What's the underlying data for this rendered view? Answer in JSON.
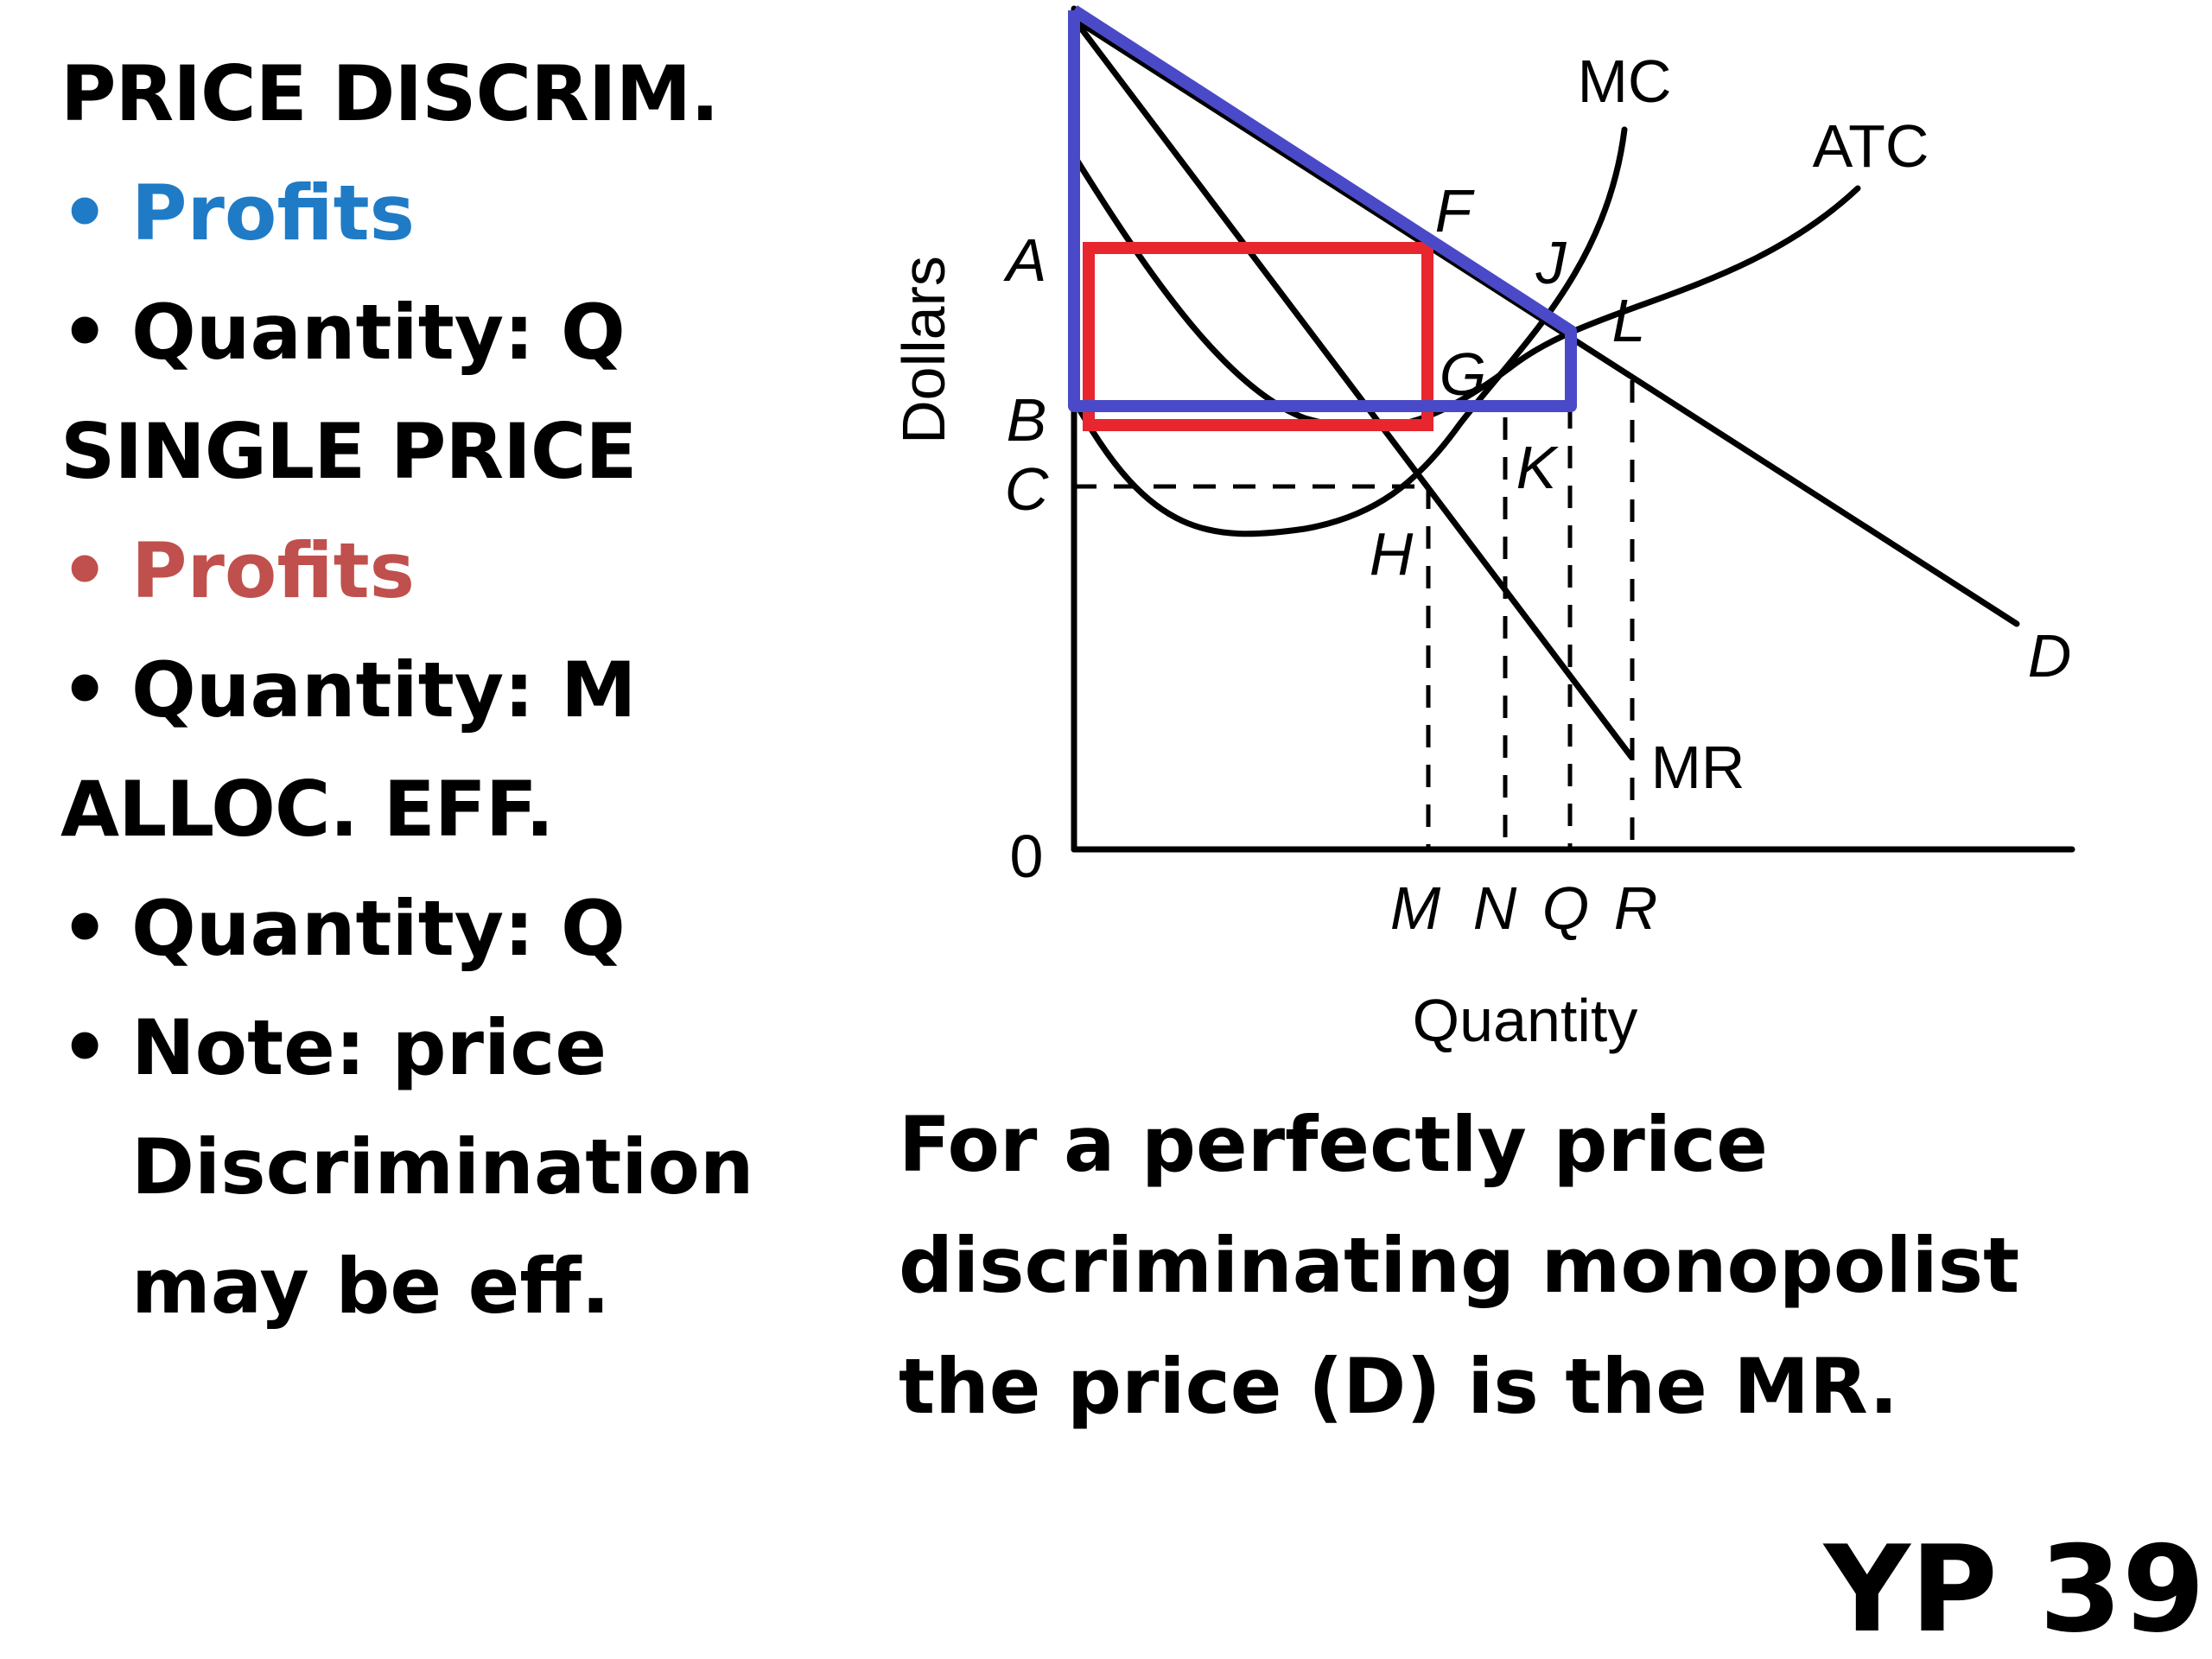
{
  "left_panel": {
    "price_discrim": {
      "title": "PRICE DISCRIM.",
      "bullets": [
        "Profits",
        "Quantity: Q"
      ]
    },
    "single_price": {
      "title": "SINGLE PRICE",
      "bullets": [
        "Profits",
        "Quantity: M"
      ]
    },
    "alloc_eff": {
      "title": "ALLOC. EFF.",
      "bullets": [
        "Quantity: Q"
      ],
      "note_lines": [
        "Note: price",
        "Discrimination",
        "may be eff."
      ]
    },
    "bullet_glyph": "•"
  },
  "chart": {
    "y_axis_label": "Dollars",
    "x_axis_label": "Quantity",
    "origin_label": "0",
    "price_labels": [
      "A",
      "B",
      "C"
    ],
    "quantity_labels": [
      "M",
      "N",
      "Q",
      "R"
    ],
    "point_labels": [
      "F",
      "J",
      "L",
      "G",
      "K",
      "H"
    ],
    "curve_labels": {
      "mc": "MC",
      "atc": "ATC",
      "mr": "MR",
      "demand": "D"
    },
    "colors": {
      "price_discrimination_profit": "#4a4ac8",
      "single_price_profit": "#e8262d",
      "curves": "#000000"
    }
  },
  "bottom_text": {
    "lines": [
      "For a perfectly price",
      "discriminating monopolist",
      "the price (D) is the MR."
    ]
  },
  "page_label": "YP 39"
}
